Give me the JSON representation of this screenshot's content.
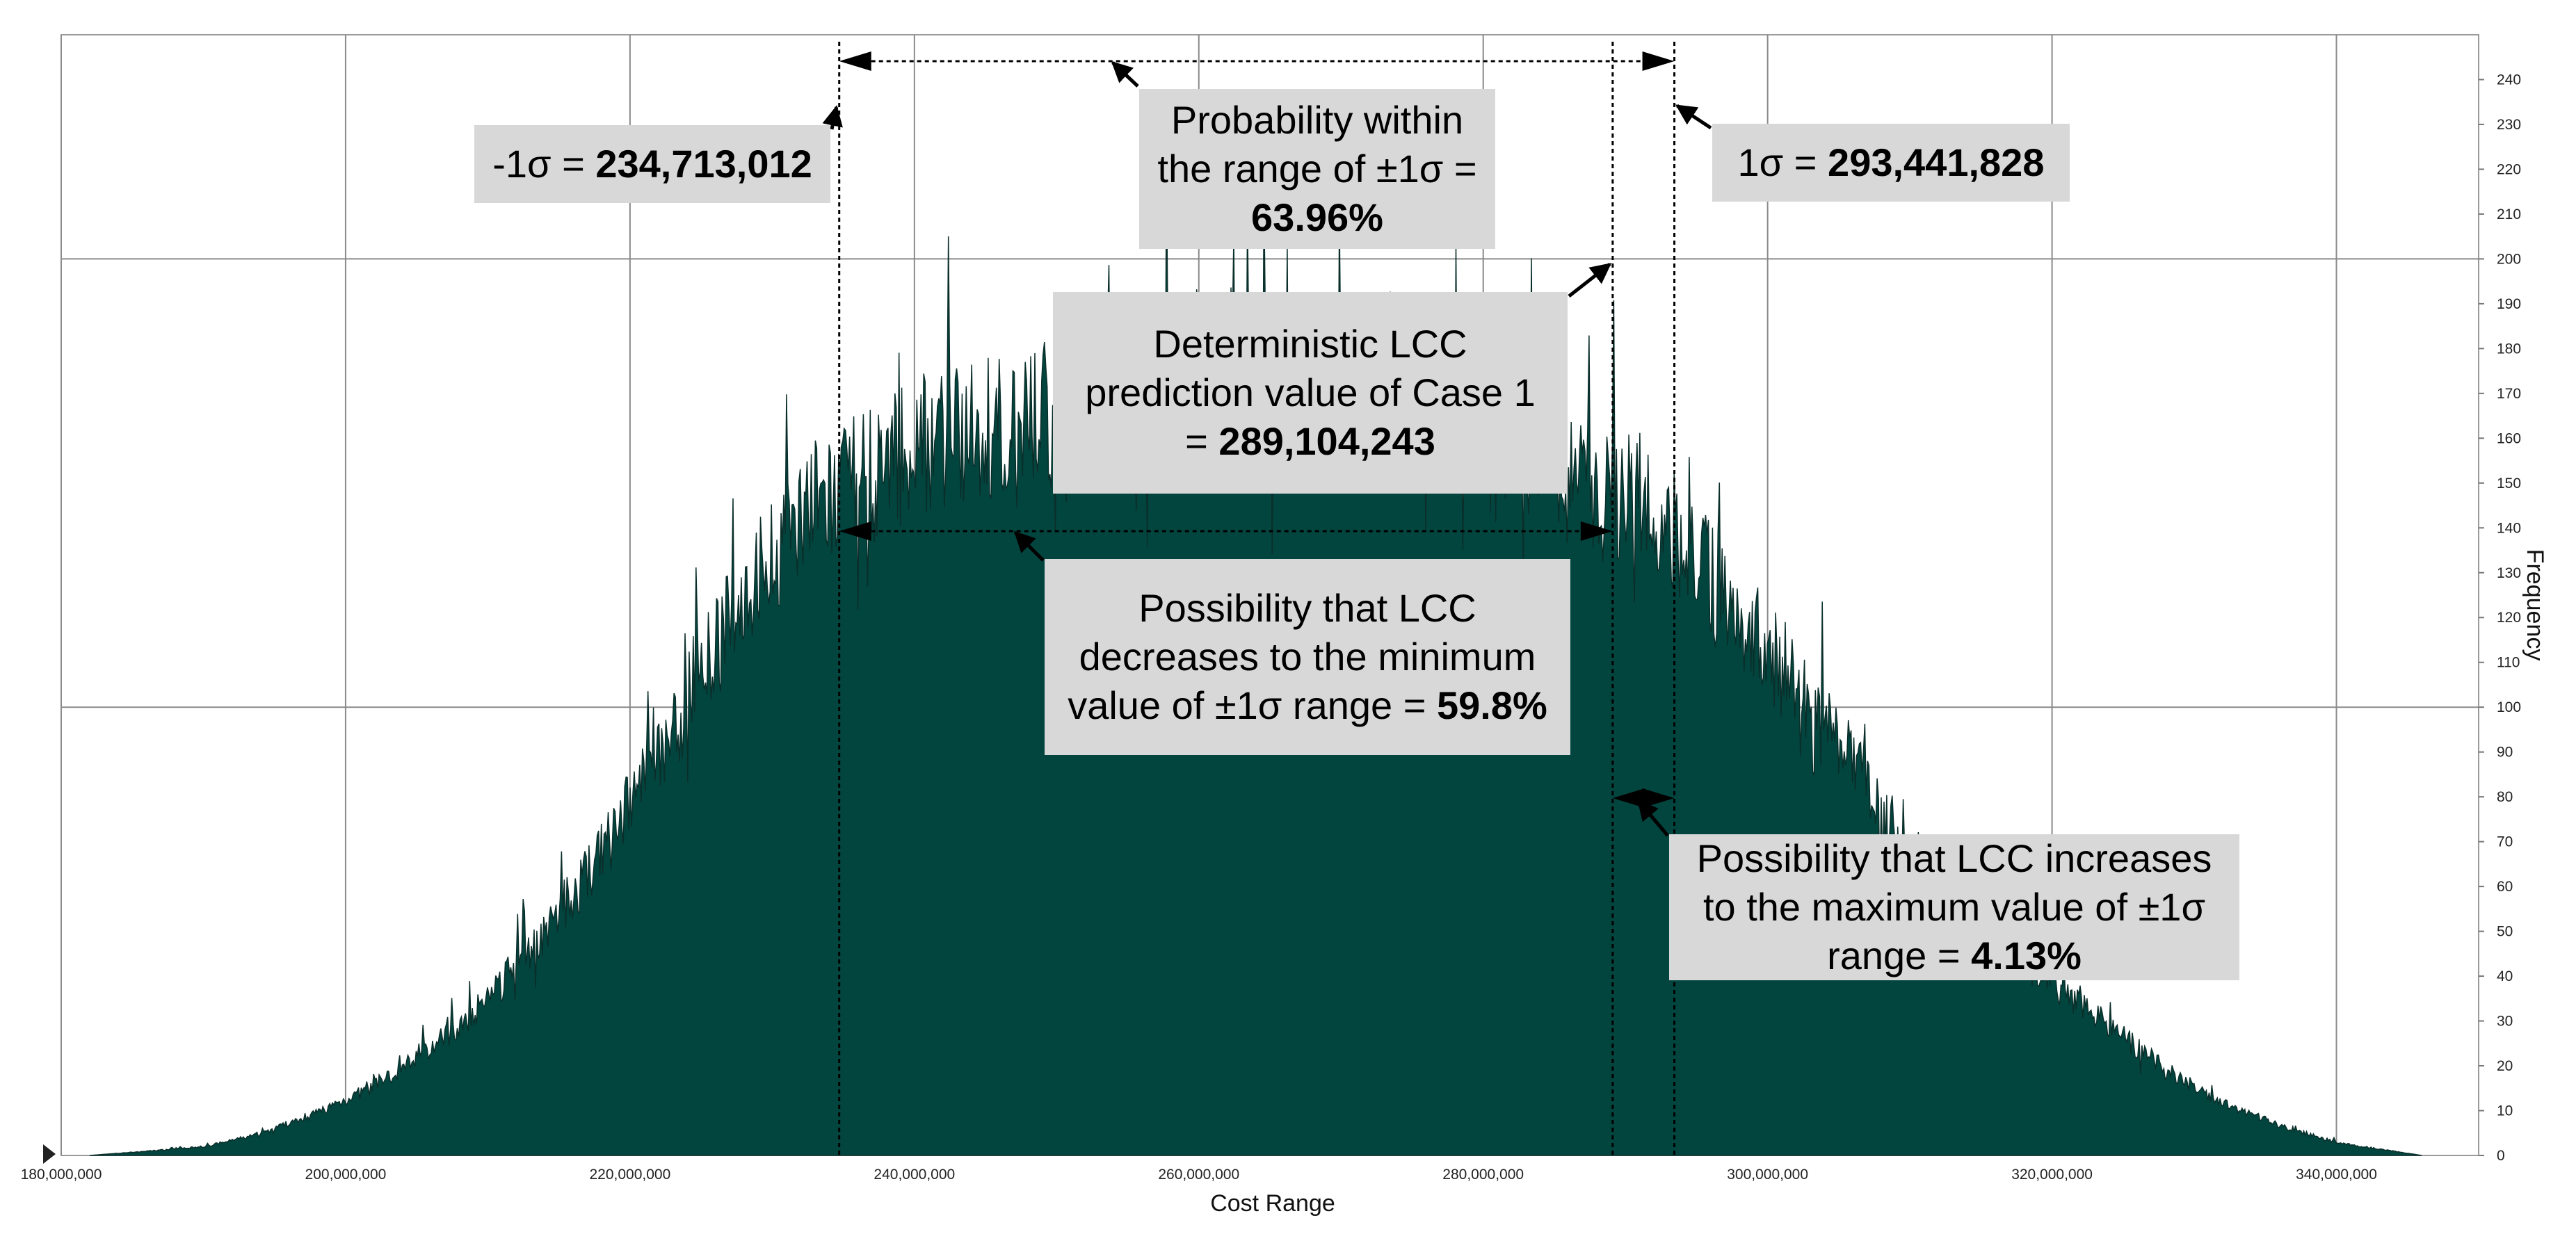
{
  "chart_data": {
    "type": "area",
    "title": "",
    "xlabel": "Cost Range",
    "ylabel": "Frequency",
    "xlim": [
      180000000,
      350000000
    ],
    "ylim": [
      0,
      250
    ],
    "x_ticks": [
      180000000,
      200000000,
      220000000,
      240000000,
      260000000,
      280000000,
      300000000,
      320000000,
      340000000
    ],
    "x_tick_labels": [
      "180,000,000",
      "200,000,000",
      "220,000,000",
      "240,000,000",
      "260,000,000",
      "280,000,000",
      "300,000,000",
      "320,000,000",
      "340,000,000"
    ],
    "y_ticks": [
      0,
      10,
      20,
      30,
      40,
      50,
      60,
      70,
      80,
      90,
      100,
      110,
      120,
      130,
      140,
      150,
      160,
      170,
      180,
      190,
      200,
      210,
      220,
      230,
      240
    ],
    "y_tick_labels": [
      "0",
      "10",
      "20",
      "30",
      "40",
      "50",
      "60",
      "70",
      "80",
      "90",
      "100",
      "110",
      "120",
      "130",
      "140",
      "150",
      "160",
      "170",
      "180",
      "190",
      "200",
      "210",
      "220",
      "230",
      "240"
    ],
    "grid": true,
    "y_axis_side": "right",
    "fill_color": "#02453f",
    "envelope": {
      "x": [
        182000000,
        186000000,
        190000000,
        194000000,
        198000000,
        202000000,
        206000000,
        210000000,
        214000000,
        218000000,
        222000000,
        226000000,
        230000000,
        232000000,
        234000000,
        236000000,
        240000000,
        244000000,
        248000000,
        252000000,
        256000000,
        260000000,
        264000000,
        268000000,
        272000000,
        276000000,
        280000000,
        284000000,
        288000000,
        290000000,
        292000000,
        296000000,
        300000000,
        304000000,
        308000000,
        312000000,
        316000000,
        320000000,
        324000000,
        328000000,
        332000000,
        336000000,
        340000000,
        344000000,
        346000000
      ],
      "y": [
        0,
        1,
        2,
        5,
        10,
        16,
        25,
        36,
        52,
        70,
        92,
        118,
        140,
        150,
        152,
        155,
        166,
        168,
        170,
        175,
        176,
        178,
        178,
        176,
        174,
        175,
        172,
        165,
        152,
        155,
        150,
        135,
        118,
        100,
        80,
        62,
        50,
        40,
        30,
        20,
        12,
        7,
        3,
        1,
        0
      ]
    },
    "markers": [
      {
        "name": "minus-one-sigma",
        "x": 234713012
      },
      {
        "name": "deterministic-lcc",
        "x": 289104243
      },
      {
        "name": "plus-one-sigma",
        "x": 293441828
      }
    ]
  },
  "annotations": {
    "minus_sigma": {
      "label": "-1σ = ",
      "value": "234,713,012"
    },
    "plus_sigma": {
      "label": "1σ = ",
      "value": "293,441,828"
    },
    "probability": {
      "line1": "Probability within",
      "line2": "the range of ±1σ =",
      "value": "63.96%"
    },
    "deterministic": {
      "line1": "Deterministic LCC",
      "line2": "prediction value of Case 1",
      "prefix": "= ",
      "value": "289,104,243"
    },
    "decrease": {
      "line1": "Possibility that LCC",
      "line2": "decreases to the minimum",
      "line3": "value of ±1σ range = ",
      "value": "59.8%"
    },
    "increase": {
      "line1": "Possibility that LCC increases",
      "line2": "to the maximum value of ±1σ",
      "line3": "range = ",
      "value": "4.13%"
    }
  }
}
